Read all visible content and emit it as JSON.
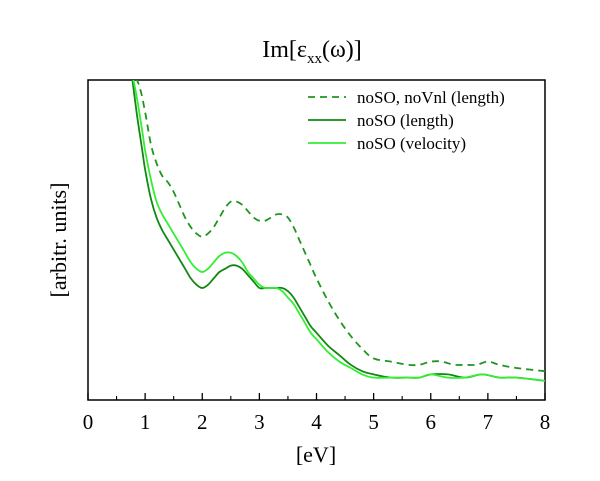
{
  "chart_data": {
    "type": "line",
    "title_main": "Im[ε",
    "title_sub": "xx",
    "title_tail": "(ω)]",
    "xlabel": "[eV]",
    "ylabel": "[arbitr. units]",
    "xlim": [
      0,
      8
    ],
    "ylim": [
      0,
      1
    ],
    "xticks": [
      0,
      1,
      2,
      3,
      4,
      5,
      6,
      7,
      8
    ],
    "xtick_labels": [
      "0",
      "1",
      "2",
      "3",
      "4",
      "5",
      "6",
      "7",
      "8"
    ],
    "y_ticks_shown": false,
    "grid": false,
    "legend_position": "top-right",
    "series": [
      {
        "name": "noSO, noVnl (length)",
        "color": "#1e961e",
        "style": "dashed",
        "x": [
          0.75,
          0.9,
          1.0,
          1.1,
          1.2,
          1.3,
          1.4,
          1.5,
          1.6,
          1.7,
          1.8,
          1.9,
          2.0,
          2.1,
          2.2,
          2.3,
          2.4,
          2.5,
          2.6,
          2.7,
          2.8,
          2.9,
          3.0,
          3.1,
          3.2,
          3.3,
          3.4,
          3.5,
          3.6,
          3.7,
          3.8,
          3.9,
          4.0,
          4.2,
          4.4,
          4.6,
          4.8,
          5.0,
          5.3,
          5.6,
          5.8,
          6.0,
          6.2,
          6.4,
          6.6,
          6.8,
          7.0,
          7.2,
          7.5,
          8.0
        ],
        "y": [
          1.04,
          0.98,
          0.9,
          0.8,
          0.74,
          0.7,
          0.68,
          0.65,
          0.61,
          0.57,
          0.54,
          0.52,
          0.51,
          0.52,
          0.54,
          0.57,
          0.6,
          0.62,
          0.62,
          0.61,
          0.59,
          0.57,
          0.56,
          0.56,
          0.57,
          0.58,
          0.58,
          0.57,
          0.54,
          0.5,
          0.46,
          0.42,
          0.38,
          0.31,
          0.25,
          0.2,
          0.16,
          0.13,
          0.12,
          0.11,
          0.11,
          0.12,
          0.12,
          0.11,
          0.11,
          0.11,
          0.12,
          0.11,
          0.1,
          0.09
        ]
      },
      {
        "name": "noSO (length)",
        "color": "#118811",
        "style": "solid",
        "x": [
          0.75,
          0.85,
          0.95,
          1.0,
          1.1,
          1.2,
          1.3,
          1.4,
          1.5,
          1.6,
          1.7,
          1.8,
          1.9,
          2.0,
          2.1,
          2.2,
          2.3,
          2.4,
          2.5,
          2.6,
          2.7,
          2.8,
          2.9,
          3.0,
          3.1,
          3.2,
          3.3,
          3.4,
          3.5,
          3.6,
          3.7,
          3.8,
          3.9,
          4.0,
          4.2,
          4.4,
          4.6,
          4.8,
          5.0,
          5.3,
          5.6,
          5.8,
          6.0,
          6.3,
          6.6,
          6.9,
          7.2,
          7.5,
          8.0
        ],
        "y": [
          1.04,
          0.9,
          0.78,
          0.72,
          0.63,
          0.57,
          0.53,
          0.5,
          0.47,
          0.44,
          0.41,
          0.38,
          0.36,
          0.35,
          0.36,
          0.38,
          0.4,
          0.41,
          0.42,
          0.42,
          0.41,
          0.39,
          0.37,
          0.35,
          0.35,
          0.35,
          0.35,
          0.35,
          0.34,
          0.32,
          0.29,
          0.26,
          0.23,
          0.21,
          0.17,
          0.14,
          0.11,
          0.09,
          0.08,
          0.07,
          0.07,
          0.07,
          0.08,
          0.08,
          0.07,
          0.08,
          0.07,
          0.07,
          0.06
        ]
      },
      {
        "name": "noSO (velocity)",
        "color": "#33ee33",
        "style": "solid",
        "x": [
          0.75,
          0.85,
          0.95,
          1.0,
          1.1,
          1.2,
          1.3,
          1.4,
          1.5,
          1.6,
          1.7,
          1.8,
          1.9,
          2.0,
          2.1,
          2.2,
          2.3,
          2.4,
          2.5,
          2.6,
          2.7,
          2.8,
          2.9,
          3.0,
          3.1,
          3.2,
          3.3,
          3.4,
          3.5,
          3.6,
          3.7,
          3.8,
          3.9,
          4.0,
          4.2,
          4.4,
          4.6,
          4.8,
          5.0,
          5.3,
          5.6,
          5.8,
          6.0,
          6.3,
          6.6,
          6.9,
          7.2,
          7.5,
          8.0
        ],
        "y": [
          1.04,
          0.95,
          0.84,
          0.78,
          0.69,
          0.62,
          0.58,
          0.55,
          0.52,
          0.49,
          0.46,
          0.43,
          0.41,
          0.4,
          0.41,
          0.43,
          0.45,
          0.46,
          0.46,
          0.45,
          0.43,
          0.4,
          0.38,
          0.36,
          0.35,
          0.35,
          0.35,
          0.34,
          0.32,
          0.3,
          0.27,
          0.24,
          0.21,
          0.19,
          0.15,
          0.12,
          0.1,
          0.08,
          0.07,
          0.07,
          0.07,
          0.07,
          0.08,
          0.07,
          0.07,
          0.08,
          0.07,
          0.07,
          0.06
        ]
      }
    ]
  }
}
